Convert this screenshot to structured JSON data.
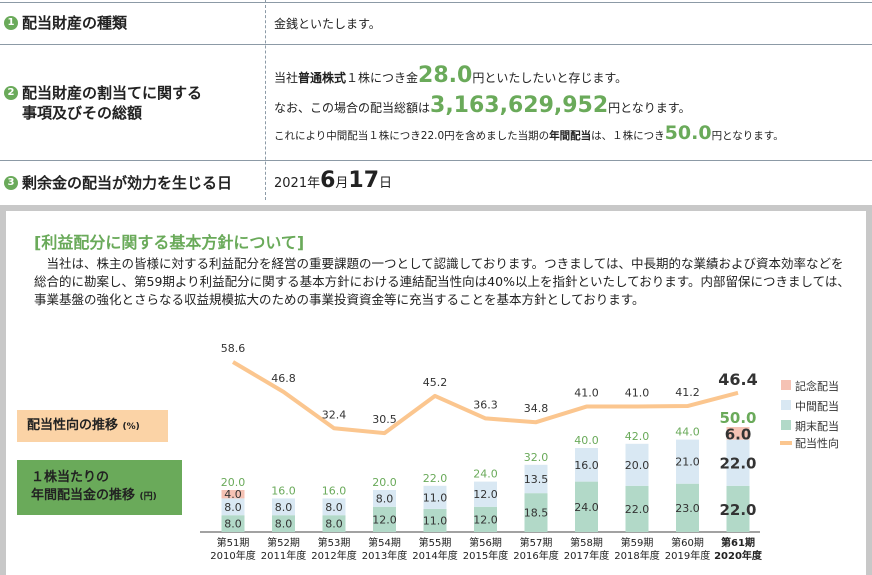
{
  "table": {
    "row1": {
      "num": "1",
      "label": "配当財産の種類",
      "value": "金銭といたします。"
    },
    "row2": {
      "num": "2",
      "label_l1": "配当財産の割当てに関する",
      "label_l2": "事項及びその総額",
      "line1": {
        "a": "当社",
        "b": "普通株式",
        "c": "１株につき金",
        "amount": "28.0",
        "d": "円といたしたいと存じます。"
      },
      "line2": {
        "a": "なお、この場合の配当総額は",
        "amount": "3,163,629,952",
        "d": "円となります。"
      },
      "line3": {
        "a": "これにより中間配当１株につき22.0円を含めました当期の",
        "b": "年間配当",
        "c": "は、１株につき",
        "amount": "50.0",
        "d": "円となります。"
      }
    },
    "row3": {
      "num": "3",
      "label": "剰余金の配当が効力を生じる日",
      "year": "2021年",
      "month": "6",
      "month_unit": "月",
      "day": "17",
      "day_unit": "日"
    }
  },
  "policy": {
    "title": "[利益配分に関する基本方針について]",
    "text": "当社は、株主の皆様に対する利益配分を経営の重要課題の一つとして認識しております。つきましては、中長期的な業績および資本効率などを総合的に勘案し、第59期より利益配分に関する基本方針における連結配当性向は40%以上を指針といたしております。内部留保につきましては、事業基盤の強化とさらなる収益規模拡大のための事業投資資金等に充当することを基本方針としております。"
  },
  "labels": {
    "payout": "配当性向の推移",
    "payout_unit": "(%)",
    "dps_l1": "１株当たりの",
    "dps_l2": "年間配当金の推移",
    "dps_unit": "(円)"
  },
  "chart_data": {
    "type": "bar",
    "categories": [
      "第51期",
      "第52期",
      "第53期",
      "第54期",
      "第55期",
      "第56期",
      "第57期",
      "第58期",
      "第59期",
      "第60期",
      "第61期"
    ],
    "years": [
      "2010年度",
      "2011年度",
      "2012年度",
      "2013年度",
      "2014年度",
      "2015年度",
      "2016年度",
      "2017年度",
      "2018年度",
      "2019年度",
      "2020年度"
    ],
    "series": [
      {
        "name": "期末配当",
        "color": "#b2d9c8",
        "values": [
          8.0,
          8.0,
          8.0,
          12.0,
          11.0,
          12.0,
          18.5,
          24.0,
          22.0,
          23.0,
          22.0
        ]
      },
      {
        "name": "中間配当",
        "color": "#d9e8f3",
        "values": [
          8.0,
          8.0,
          8.0,
          8.0,
          11.0,
          12.0,
          13.5,
          16.0,
          20.0,
          21.0,
          22.0
        ]
      },
      {
        "name": "記念配当",
        "color": "#f5c2b4",
        "values": [
          4.0,
          0,
          0,
          0,
          0,
          0,
          0,
          0,
          0,
          0,
          6.0
        ]
      }
    ],
    "totals": [
      20.0,
      16.0,
      16.0,
      20.0,
      22.0,
      24.0,
      32.0,
      40.0,
      42.0,
      44.0,
      50.0
    ],
    "line": {
      "name": "配当性向",
      "color": "#fbc68f",
      "values": [
        58.6,
        46.8,
        32.4,
        30.5,
        45.2,
        36.3,
        34.8,
        41.0,
        41.0,
        41.2,
        46.4
      ]
    }
  }
}
